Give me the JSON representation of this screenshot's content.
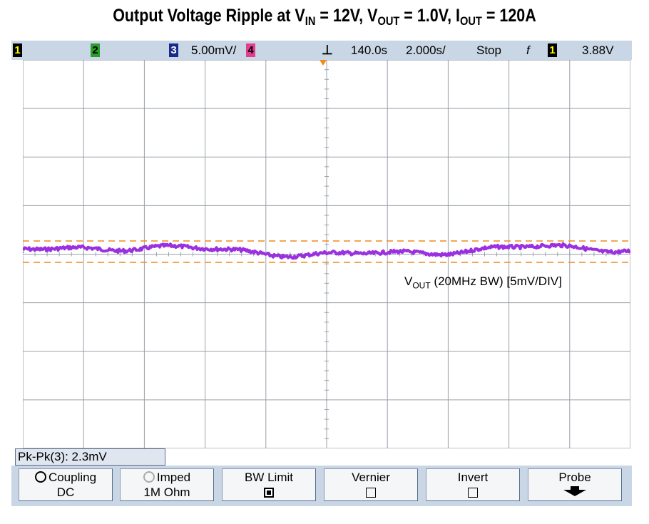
{
  "title": {
    "prefix": "Output Voltage Ripple at V",
    "vin_sub": "IN",
    "vin_val": " = 12V, V",
    "vout_sub": "OUT",
    "vout_val": " = 1.0V, I",
    "iout_sub": "OUT",
    "iout_val": " = 120A"
  },
  "status": {
    "ch1": "1",
    "ch2": "2",
    "ch3": "3",
    "ch3_scale": "5.00mV/",
    "ch4": "4",
    "delay": "140.0s",
    "timebase": "2.000s/",
    "run_state": "Stop",
    "trigger_slope": "f",
    "trigger_source": "1",
    "trigger_level": "3.88V"
  },
  "colors": {
    "trace": "#9b30e0",
    "cursor": "#f08a1a",
    "grid": "#9aa0a8",
    "statusbar": "#c9d6e5"
  },
  "trace": {
    "channel_marker": "3",
    "label_v": "V",
    "label_sub": "OUT",
    "label_rest": " (20MHz BW) [5mV/DIV]"
  },
  "measurement": {
    "label": "Pk-Pk(3): 2.3mV"
  },
  "softkeys": [
    {
      "line1": "Coupling",
      "line2": "DC",
      "icon": "knob-icon"
    },
    {
      "line1": "Imped",
      "line2": "1M Ohm",
      "icon": "knob-icon-dim"
    },
    {
      "line1": "BW Limit",
      "line2": "",
      "icon": "checkbox-checked"
    },
    {
      "line1": "Vernier",
      "line2": "",
      "icon": "checkbox-empty"
    },
    {
      "line1": "Invert",
      "line2": "",
      "icon": "checkbox-empty"
    },
    {
      "line1": "Probe",
      "line2": "",
      "icon": "down-arrow-icon"
    }
  ]
}
